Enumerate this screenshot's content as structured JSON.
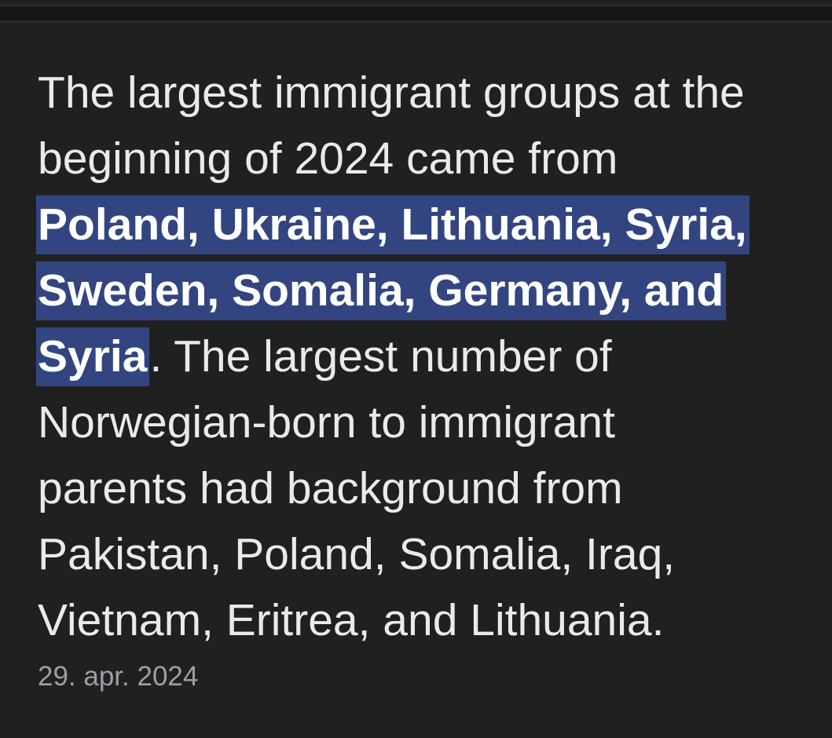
{
  "snippet": {
    "lines": [
      {
        "before": "The largest immigrant groups at the",
        "highlight": "",
        "after": ""
      },
      {
        "before": "beginning of 2024 came from",
        "highlight": "",
        "after": ""
      },
      {
        "before": "",
        "highlight": "Poland, Ukraine, Lithuania, Syria,",
        "after": ""
      },
      {
        "before": "",
        "highlight": "Sweden, Somalia, Germany, and",
        "after": ""
      },
      {
        "before": "",
        "highlight": "Syria",
        "after": ". The largest number of"
      },
      {
        "before": "Norwegian-born to immigrant",
        "highlight": "",
        "after": ""
      },
      {
        "before": "parents had background from",
        "highlight": "",
        "after": ""
      },
      {
        "before": "Pakistan, Poland, Somalia, Iraq,",
        "highlight": "",
        "after": ""
      },
      {
        "before": "Vietnam, Eritrea, and Lithuania.",
        "highlight": "",
        "after": ""
      }
    ],
    "date": "29. apr. 2024",
    "highlight_color": "#334580"
  }
}
